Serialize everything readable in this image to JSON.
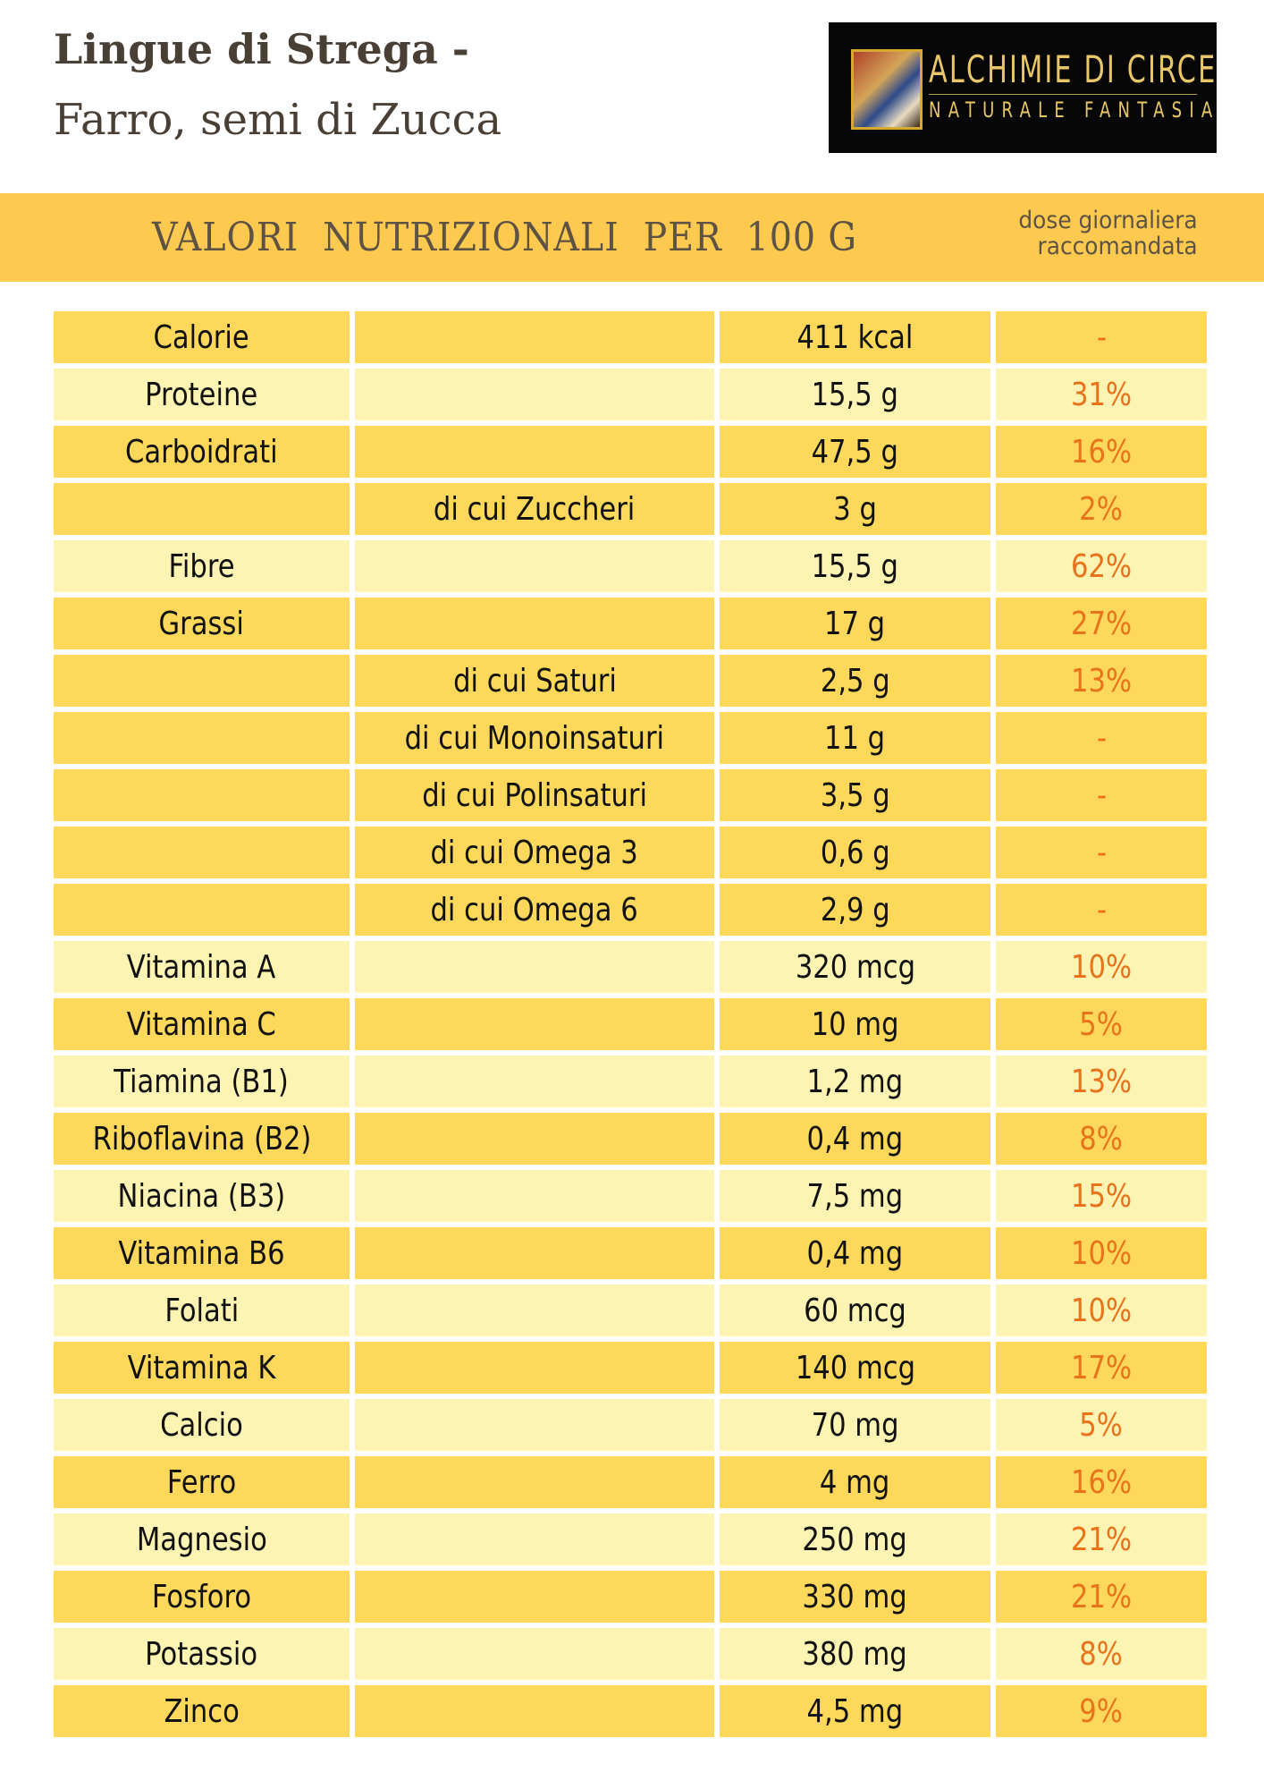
{
  "header": {
    "title": "Lingue di Strega -",
    "subtitle": "Farro, semi di Zucca"
  },
  "logo": {
    "name": "ALCHIMIE DI CIRCE",
    "tagline": "NATURALE FANTASIA"
  },
  "banner": {
    "title": "VALORI  NUTRIZIONALI  PER  100 G",
    "side_line1": "dose giornaliera",
    "side_line2": "raccomandata"
  },
  "colors": {
    "dark_row": "#fdd85a",
    "light_row": "#fdf3b3",
    "banner": "#fdca4f",
    "percent": "#e8731a"
  },
  "rows": [
    {
      "name": "Calorie",
      "sub": "",
      "value": "411 kcal",
      "dr": "-",
      "light": false
    },
    {
      "name": "Proteine",
      "sub": "",
      "value": "15,5 g",
      "dr": "31%",
      "light": true
    },
    {
      "name": "Carboidrati",
      "sub": "",
      "value": "47,5 g",
      "dr": "16%",
      "light": false
    },
    {
      "name": "",
      "sub": "di cui Zuccheri",
      "value": "3 g",
      "dr": "2%",
      "light": false
    },
    {
      "name": "Fibre",
      "sub": "",
      "value": "15,5 g",
      "dr": "62%",
      "light": true
    },
    {
      "name": "Grassi",
      "sub": "",
      "value": "17 g",
      "dr": "27%",
      "light": false
    },
    {
      "name": "",
      "sub": "di cui Saturi",
      "value": "2,5 g",
      "dr": "13%",
      "light": false
    },
    {
      "name": "",
      "sub": "di cui Monoinsaturi",
      "value": "11 g",
      "dr": "-",
      "light": false
    },
    {
      "name": "",
      "sub": "di cui Polinsaturi",
      "value": "3,5 g",
      "dr": "-",
      "light": false
    },
    {
      "name": "",
      "sub": "di cui Omega 3",
      "value": "0,6 g",
      "dr": "-",
      "light": false
    },
    {
      "name": "",
      "sub": "di cui Omega 6",
      "value": "2,9 g",
      "dr": "-",
      "light": false
    },
    {
      "name": "Vitamina A",
      "sub": "",
      "value": "320 mcg",
      "dr": "10%",
      "light": true
    },
    {
      "name": "Vitamina C",
      "sub": "",
      "value": "10 mg",
      "dr": "5%",
      "light": false
    },
    {
      "name": "Tiamina (B1)",
      "sub": "",
      "value": "1,2 mg",
      "dr": "13%",
      "light": true
    },
    {
      "name": "Riboflavina (B2)",
      "sub": "",
      "value": "0,4 mg",
      "dr": "8%",
      "light": false
    },
    {
      "name": "Niacina (B3)",
      "sub": "",
      "value": "7,5 mg",
      "dr": "15%",
      "light": true
    },
    {
      "name": "Vitamina B6",
      "sub": "",
      "value": "0,4 mg",
      "dr": "10%",
      "light": false
    },
    {
      "name": "Folati",
      "sub": "",
      "value": "60 mcg",
      "dr": "10%",
      "light": true
    },
    {
      "name": "Vitamina K",
      "sub": "",
      "value": "140 mcg",
      "dr": "17%",
      "light": false
    },
    {
      "name": "Calcio",
      "sub": "",
      "value": "70 mg",
      "dr": "5%",
      "light": true
    },
    {
      "name": "Ferro",
      "sub": "",
      "value": "4 mg",
      "dr": "16%",
      "light": false
    },
    {
      "name": "Magnesio",
      "sub": "",
      "value": "250 mg",
      "dr": "21%",
      "light": true
    },
    {
      "name": "Fosforo",
      "sub": "",
      "value": "330 mg",
      "dr": "21%",
      "light": false
    },
    {
      "name": "Potassio",
      "sub": "",
      "value": "380 mg",
      "dr": "8%",
      "light": true
    },
    {
      "name": "Zinco",
      "sub": "",
      "value": "4,5 mg",
      "dr": "9%",
      "light": false
    }
  ]
}
